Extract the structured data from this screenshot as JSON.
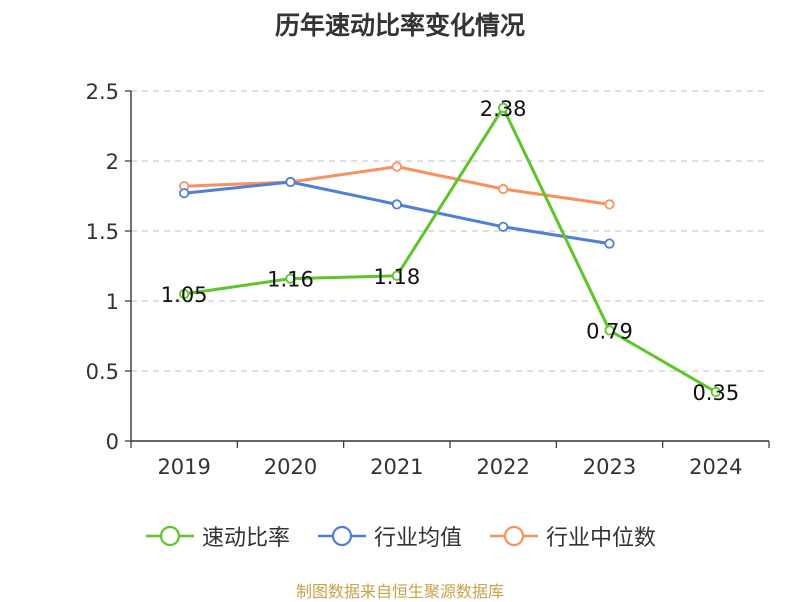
{
  "chart_data": {
    "type": "line",
    "title": "历年速动比率变化情况",
    "categories": [
      "2019",
      "2020",
      "2021",
      "2022",
      "2023",
      "2024"
    ],
    "y_ticks": [
      "0",
      "0.5",
      "1",
      "1.5",
      "2",
      "2.5"
    ],
    "ylim": [
      0,
      2.5
    ],
    "grid": true,
    "legend_position": "bottom",
    "series": [
      {
        "name": "速动比率",
        "color": "#5dc42a",
        "values": [
          1.05,
          1.16,
          1.18,
          2.38,
          0.79,
          0.35
        ],
        "labels": [
          "1.05",
          "1.16",
          "1.18",
          "2.38",
          "0.79",
          "0.35"
        ]
      },
      {
        "name": "行业均值",
        "color": "#4f7fd6",
        "values": [
          1.77,
          1.85,
          1.69,
          1.53,
          1.41,
          null
        ]
      },
      {
        "name": "行业中位数",
        "color": "#f89060",
        "values": [
          1.82,
          1.85,
          1.96,
          1.8,
          1.69,
          null
        ]
      }
    ]
  },
  "source_note": "制图数据来自恒生聚源数据库"
}
